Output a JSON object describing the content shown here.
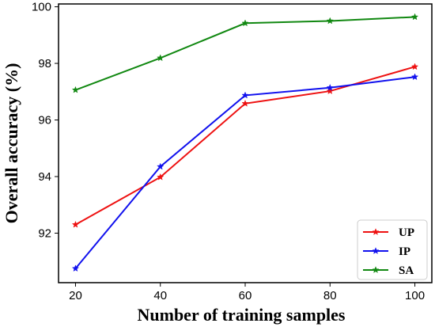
{
  "chart_data": {
    "type": "line",
    "title": "",
    "xlabel": "Number of training samples",
    "ylabel": "Overall accuracy (%)",
    "x": [
      20,
      40,
      60,
      80,
      100
    ],
    "xticks": [
      "20",
      "40",
      "60",
      "80",
      "100"
    ],
    "yticks": [
      "92",
      "94",
      "96",
      "98",
      "100"
    ],
    "xlim": [
      16,
      104
    ],
    "ylim": [
      90.25,
      100.1
    ],
    "grid": false,
    "legend_position": "bottom-right",
    "series": [
      {
        "name": "UP",
        "color": "#ee1111",
        "values": [
          92.3,
          93.98,
          96.58,
          97.02,
          97.88
        ]
      },
      {
        "name": "IP",
        "color": "#1111ee",
        "values": [
          90.75,
          94.35,
          96.87,
          97.14,
          97.52
        ]
      },
      {
        "name": "SA",
        "color": "#118811",
        "values": [
          97.06,
          98.19,
          99.42,
          99.5,
          99.64
        ]
      }
    ]
  }
}
